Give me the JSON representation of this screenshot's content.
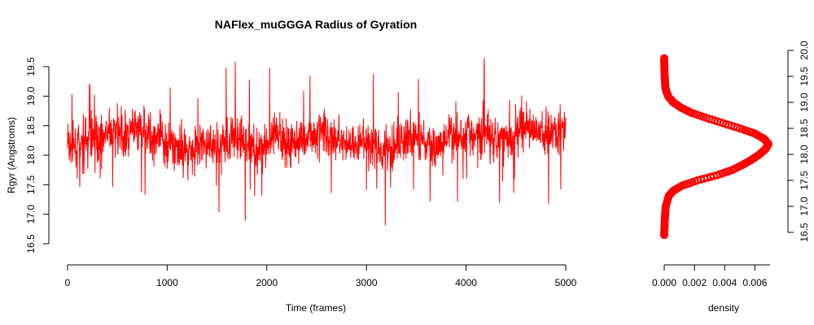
{
  "chart_data": [
    {
      "type": "line",
      "title": "NAFlex_muGGGA Radius of Gyration",
      "xlabel": "Time (frames)",
      "ylabel": "Rgyr (Angstroms)",
      "xlim": [
        0,
        5000
      ],
      "ylim": [
        16.5,
        19.5
      ],
      "x_ticks": [
        0,
        1000,
        2000,
        3000,
        4000,
        5000
      ],
      "x_tick_labels": [
        "0",
        "1000",
        "2000",
        "3000",
        "4000",
        "5000"
      ],
      "y_ticks": [
        16.5,
        17.0,
        17.5,
        18.0,
        18.5,
        19.0,
        19.5
      ],
      "y_tick_labels": [
        "16.5",
        "17.0",
        "17.5",
        "18.0",
        "18.5",
        "19.0",
        "19.5"
      ],
      "grid": false,
      "color": "#ff0000",
      "series": [
        {
          "x": [
            0,
            100,
            200,
            300,
            400,
            500,
            600,
            700,
            800,
            900,
            1000,
            1100,
            1200,
            1300,
            1400,
            1500,
            1600,
            1700,
            1800,
            1900,
            2000,
            2100,
            2200,
            2300,
            2400,
            2500,
            2600,
            2700,
            2800,
            2900,
            3000,
            3100,
            3200,
            3300,
            3400,
            3500,
            3600,
            3700,
            3800,
            3900,
            4000,
            4100,
            4200,
            4300,
            4400,
            4500,
            4600,
            4700,
            4800,
            4900,
            5000
          ],
          "values": [
            18.2,
            18.1,
            18.25,
            18.3,
            18.35,
            18.4,
            18.3,
            18.45,
            18.35,
            18.3,
            18.2,
            18.15,
            18.1,
            18.15,
            18.2,
            18.1,
            18.25,
            18.3,
            18.2,
            18.1,
            18.2,
            18.3,
            18.25,
            18.2,
            18.3,
            18.4,
            18.35,
            18.3,
            18.2,
            18.15,
            18.2,
            18.15,
            18.1,
            18.2,
            18.25,
            18.3,
            18.2,
            18.15,
            18.25,
            18.3,
            18.4,
            18.35,
            18.4,
            18.3,
            18.35,
            18.4,
            18.45,
            18.35,
            18.4,
            18.45,
            18.4
          ]
        }
      ]
    },
    {
      "type": "line",
      "title": "",
      "xlabel": "density",
      "ylabel": "",
      "xlim": [
        0,
        0.007
      ],
      "ylim": [
        16.5,
        20.0
      ],
      "x_ticks": [
        0,
        0.002,
        0.004,
        0.006
      ],
      "x_tick_labels": [
        "0.000",
        "0.002",
        "0.004",
        "0.006"
      ],
      "y_ticks": [
        16.5,
        17.0,
        17.5,
        18.0,
        18.5,
        19.0,
        19.5,
        20.0
      ],
      "y_tick_labels": [
        "16.5",
        "17.0",
        "17.5",
        "18.0",
        "18.5",
        "19.0",
        "19.5",
        "20.0"
      ],
      "y_axis_side": "right",
      "grid": false,
      "color": "#ff0000",
      "marker": "circle",
      "series": [
        {
          "y": [
            16.45,
            16.6,
            16.8,
            17.0,
            17.2,
            17.3,
            17.4,
            17.5,
            17.6,
            17.7,
            17.8,
            17.9,
            18.0,
            18.1,
            18.2,
            18.3,
            18.4,
            18.5,
            18.6,
            18.7,
            18.8,
            18.9,
            19.0,
            19.1,
            19.2,
            19.3,
            19.5,
            19.7,
            19.85
          ],
          "values": [
            0.0,
            2e-05,
            5e-05,
            0.0001,
            0.0003,
            0.0006,
            0.0012,
            0.0022,
            0.0035,
            0.0045,
            0.0052,
            0.0058,
            0.0063,
            0.0067,
            0.0069,
            0.0066,
            0.006,
            0.005,
            0.0039,
            0.0028,
            0.0018,
            0.0011,
            0.0006,
            0.0003,
            0.00015,
            7e-05,
            3e-05,
            1e-05,
            0.0
          ]
        }
      ]
    }
  ]
}
